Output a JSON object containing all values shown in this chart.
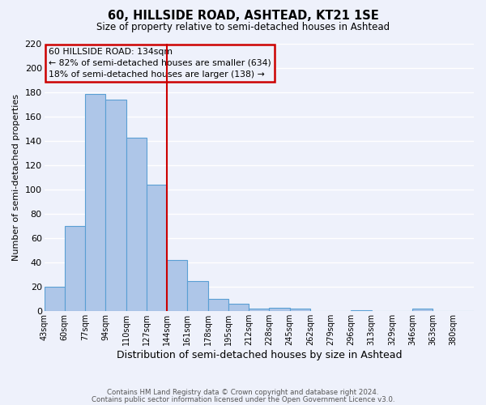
{
  "title": "60, HILLSIDE ROAD, ASHTEAD, KT21 1SE",
  "subtitle": "Size of property relative to semi-detached houses in Ashtead",
  "xlabel": "Distribution of semi-detached houses by size in Ashtead",
  "ylabel": "Number of semi-detached properties",
  "bin_labels": [
    "43sqm",
    "60sqm",
    "77sqm",
    "94sqm",
    "110sqm",
    "127sqm",
    "144sqm",
    "161sqm",
    "178sqm",
    "195sqm",
    "212sqm",
    "228sqm",
    "245sqm",
    "262sqm",
    "279sqm",
    "296sqm",
    "313sqm",
    "329sqm",
    "346sqm",
    "363sqm",
    "380sqm"
  ],
  "bar_heights": [
    20,
    70,
    179,
    174,
    143,
    104,
    42,
    25,
    10,
    6,
    2,
    3,
    2,
    0,
    0,
    1,
    0,
    0,
    2,
    0,
    0
  ],
  "bar_color": "#aec6e8",
  "bar_edge_color": "#5a9fd4",
  "vline_x": 6.0,
  "vline_color": "#cc0000",
  "annotation_title": "60 HILLSIDE ROAD: 134sqm",
  "annotation_line1": "← 82% of semi-detached houses are smaller (634)",
  "annotation_line2": "18% of semi-detached houses are larger (138) →",
  "annotation_box_color": "#cc0000",
  "ylim": [
    0,
    220
  ],
  "yticks": [
    0,
    20,
    40,
    60,
    80,
    100,
    120,
    140,
    160,
    180,
    200,
    220
  ],
  "background_color": "#eef1fb",
  "grid_color": "#ffffff",
  "footer_line1": "Contains HM Land Registry data © Crown copyright and database right 2024.",
  "footer_line2": "Contains public sector information licensed under the Open Government Licence v3.0."
}
